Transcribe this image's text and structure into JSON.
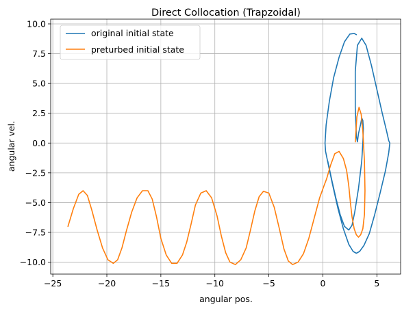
{
  "chart_data": {
    "type": "line",
    "title": "Direct Collocation (Trapzoidal)",
    "xlabel": "angular pos.",
    "ylabel": "angular vel.",
    "xlim": [
      -25.2,
      7.2
    ],
    "ylim": [
      -11.0,
      10.4
    ],
    "grid": true,
    "legend_position": "top-left",
    "xticks": [
      -25,
      -20,
      -15,
      -10,
      -5,
      0,
      5
    ],
    "xtick_labels": [
      "−25",
      "−20",
      "−15",
      "−10",
      "−5",
      "0",
      "5"
    ],
    "yticks": [
      -10.0,
      -7.5,
      -5.0,
      -2.5,
      0.0,
      2.5,
      5.0,
      7.5,
      10.0
    ],
    "ytick_labels": [
      "−10.0",
      "−7.5",
      "−5.0",
      "−2.5",
      "0.0",
      "2.5",
      "5.0",
      "7.5",
      "10.0"
    ],
    "series": [
      {
        "name": "original initial state",
        "color": "#1f77b4",
        "x": [
          0.45,
          0.8,
          1.2,
          1.6,
          2.0,
          2.4,
          2.7,
          2.95,
          3.3,
          3.6,
          3.7,
          3.75,
          3.7,
          3.6,
          3.5,
          3.3,
          3.2,
          3.1,
          3.0,
          3.0,
          3.2,
          3.6,
          4.0,
          4.5,
          5.0,
          5.5,
          5.9,
          6.1,
          6.2,
          6.1,
          5.8,
          5.3,
          4.8,
          4.3,
          3.8,
          3.4,
          3.1,
          2.8,
          2.4,
          1.9,
          1.4,
          0.9,
          0.5,
          0.25,
          0.2,
          0.3,
          0.6,
          1.0,
          1.5,
          2.0,
          2.5,
          2.9,
          3.1
        ],
        "y": [
          -1.5,
          -3.0,
          -4.6,
          -6.0,
          -7.0,
          -7.3,
          -6.9,
          -5.8,
          -3.8,
          -1.5,
          0.0,
          1.2,
          1.9,
          2.1,
          1.6,
          0.8,
          0.1,
          0.6,
          3.0,
          6.0,
          8.2,
          8.8,
          8.2,
          6.5,
          4.5,
          2.5,
          1.0,
          0.2,
          0.0,
          -0.8,
          -2.3,
          -4.2,
          -6.0,
          -7.6,
          -8.6,
          -9.1,
          -9.25,
          -9.1,
          -8.5,
          -7.2,
          -5.5,
          -3.5,
          -1.8,
          -0.7,
          0.0,
          1.5,
          3.5,
          5.5,
          7.2,
          8.5,
          9.15,
          9.2,
          9.1
        ]
      },
      {
        "name": "preturbed initial state",
        "color": "#ff7f0e",
        "x": [
          3.0,
          3.15,
          3.35,
          3.55,
          3.7,
          3.85,
          3.9,
          3.85,
          3.7,
          3.5,
          3.3,
          3.1,
          2.9,
          2.7,
          2.55,
          2.4,
          2.2,
          1.9,
          1.5,
          1.1,
          0.7,
          0.35,
          0.1,
          -0.3,
          -0.8,
          -1.3,
          -1.8,
          -2.3,
          -2.8,
          -3.2,
          -3.6,
          -4.0,
          -4.5,
          -5.0,
          -5.5,
          -5.9,
          -6.3,
          -6.7,
          -7.1,
          -7.6,
          -8.1,
          -8.6,
          -9.0,
          -9.4,
          -9.8,
          -10.3,
          -10.8,
          -11.3,
          -11.8,
          -12.2,
          -12.6,
          -13.0,
          -13.5,
          -14.0,
          -14.5,
          -15.0,
          -15.4,
          -15.8,
          -16.2,
          -16.7,
          -17.2,
          -17.7,
          -18.2,
          -18.6,
          -19.0,
          -19.4,
          -19.9,
          -20.4,
          -20.9,
          -21.4,
          -21.8,
          -22.2,
          -22.6,
          -23.1,
          -23.6
        ],
        "y": [
          0.1,
          2.2,
          3.0,
          2.4,
          1.0,
          -1.5,
          -4.0,
          -6.0,
          -7.2,
          -7.7,
          -7.9,
          -7.7,
          -7.2,
          -6.2,
          -5.0,
          -3.6,
          -2.3,
          -1.3,
          -0.7,
          -0.9,
          -1.9,
          -3.0,
          -3.6,
          -4.6,
          -6.3,
          -8.0,
          -9.3,
          -10.0,
          -10.2,
          -9.9,
          -8.9,
          -7.3,
          -5.4,
          -4.2,
          -4.05,
          -4.5,
          -5.7,
          -7.3,
          -8.8,
          -9.8,
          -10.2,
          -10.0,
          -9.2,
          -7.8,
          -6.1,
          -4.6,
          -4.0,
          -4.2,
          -5.2,
          -6.8,
          -8.3,
          -9.4,
          -10.1,
          -10.1,
          -9.4,
          -8.0,
          -6.2,
          -4.7,
          -4.0,
          -4.0,
          -4.6,
          -5.8,
          -7.4,
          -8.8,
          -9.8,
          -10.1,
          -9.8,
          -8.8,
          -7.3,
          -5.6,
          -4.4,
          -4.0,
          -4.3,
          -5.5,
          -7.0
        ]
      }
    ]
  }
}
